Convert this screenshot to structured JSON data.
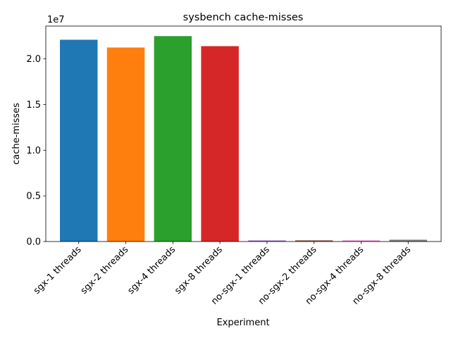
{
  "chart_data": {
    "type": "bar",
    "title": "sysbench cache-misses",
    "xlabel": "Experiment",
    "ylabel": "cache-misses",
    "offset_text": "1e7",
    "categories": [
      "sgx-1 threads",
      "sgx-2 threads",
      "sgx-4 threads",
      "sgx-8 threads",
      "no-sgx-1 threads",
      "no-sgx-2 threads",
      "no-sgx-4 threads",
      "no-sgx-8 threads"
    ],
    "values": [
      22100000,
      21250000,
      22500000,
      21400000,
      120000,
      130000,
      120000,
      200000
    ],
    "colors": [
      "#1f77b4",
      "#ff7f0e",
      "#2ca02c",
      "#d62728",
      "#9467bd",
      "#8c564b",
      "#e377c2",
      "#7f7f7f"
    ],
    "ylim": [
      0,
      23600000
    ],
    "yticks": [
      0,
      5000000,
      10000000,
      15000000,
      20000000
    ],
    "ytick_labels": [
      "0.0",
      "0.5",
      "1.0",
      "1.5",
      "2.0"
    ],
    "grid": false,
    "legend": "none"
  }
}
